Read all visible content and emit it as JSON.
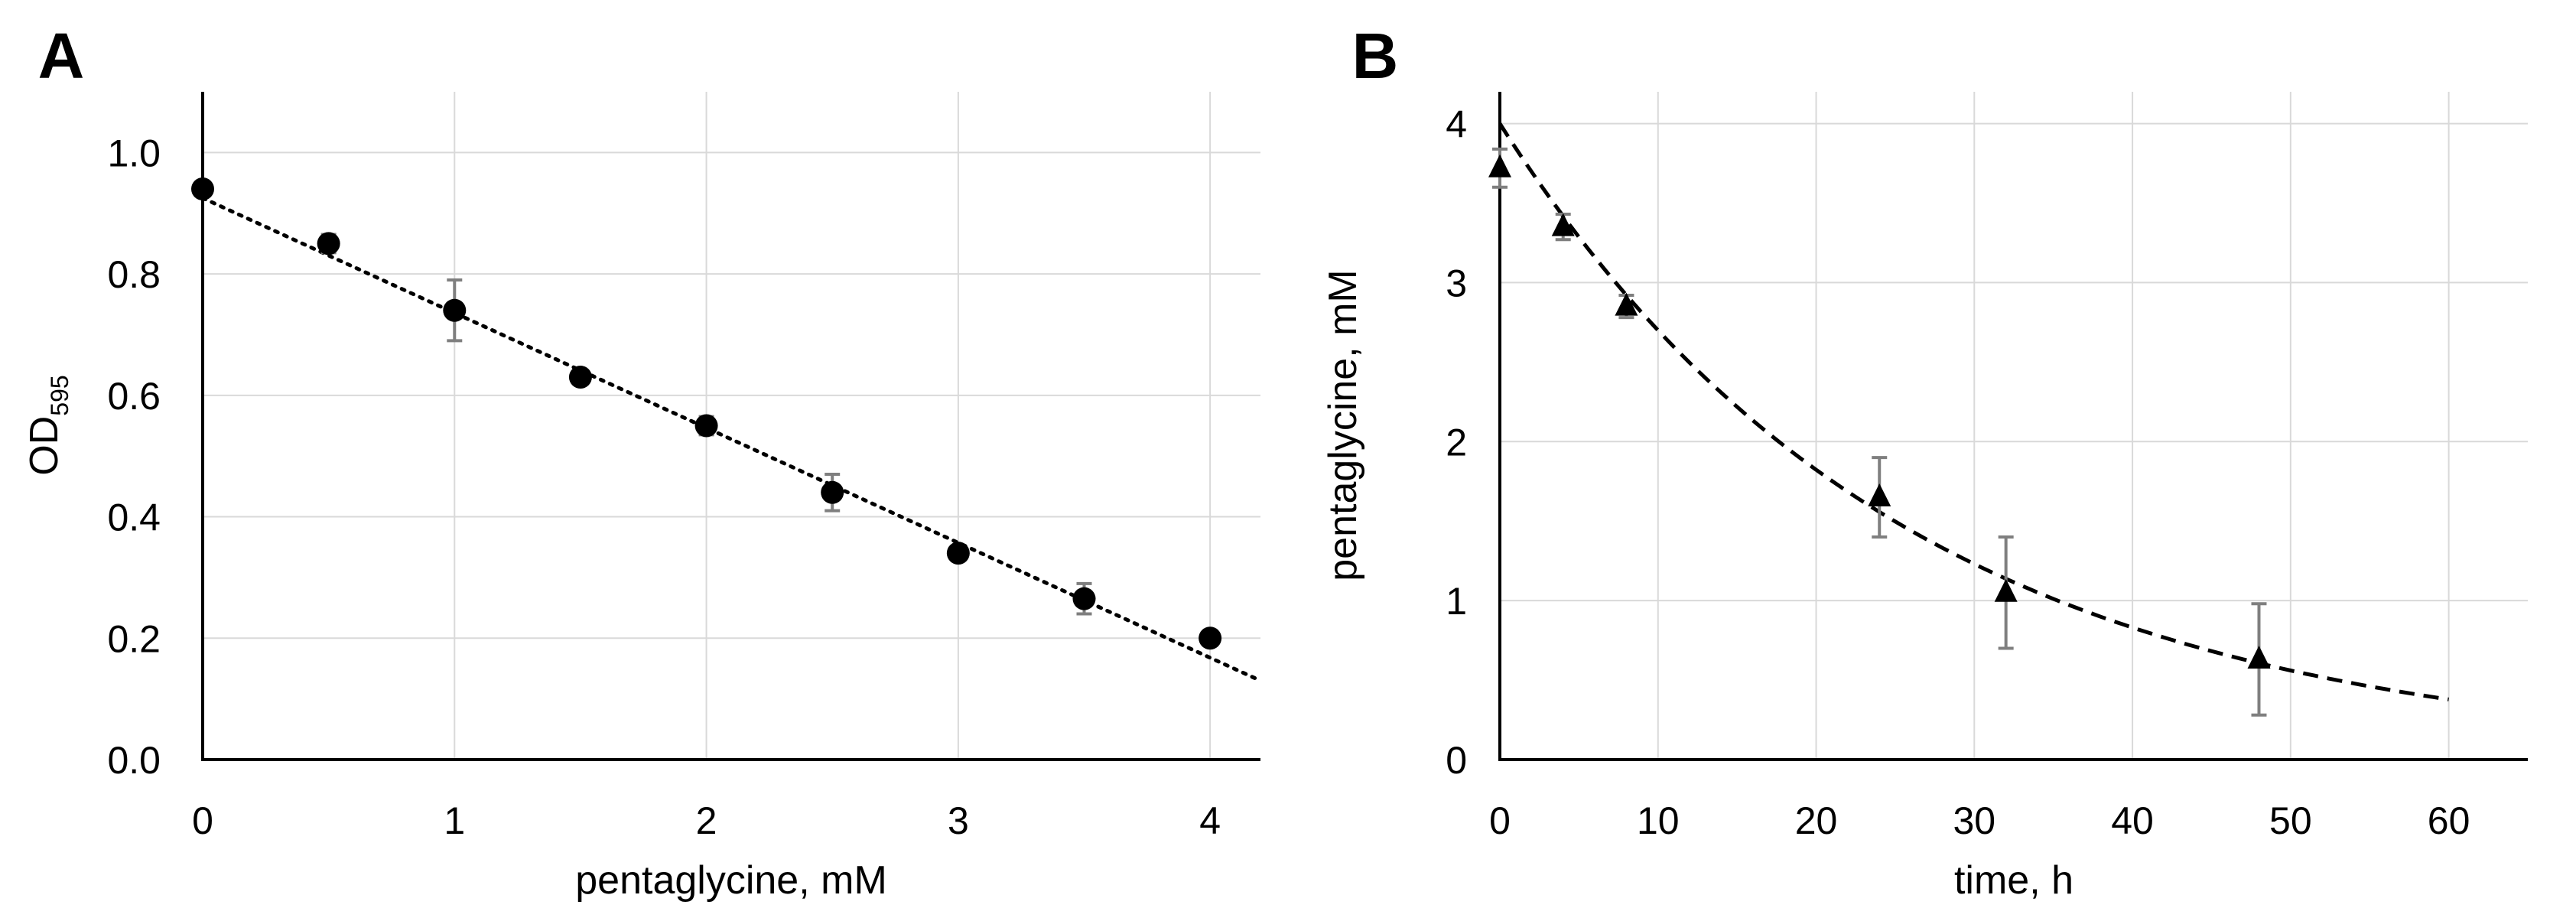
{
  "chart_data": [
    {
      "panel": "A",
      "type": "scatter",
      "xlabel": "pentaglycine, mM",
      "ylabel": "OD",
      "ylabel_sub": "595",
      "xlim": [
        0,
        4.2
      ],
      "ylim": [
        0,
        1.1
      ],
      "xticks": [
        0,
        1,
        2,
        3,
        4
      ],
      "xtick_labels": [
        "0",
        "1",
        "2",
        "3",
        "4"
      ],
      "yticks": [
        0,
        0.2,
        0.4,
        0.6,
        0.8,
        1.0
      ],
      "ytick_labels": [
        "0.0",
        "0.2",
        "0.4",
        "0.6",
        "0.8",
        "1.0"
      ],
      "grid": true,
      "marker": "circle",
      "series": [
        {
          "name": "OD595",
          "x": [
            0,
            0.5,
            1,
            1.5,
            2,
            2.5,
            3,
            3.5,
            4
          ],
          "y": [
            0.94,
            0.85,
            0.74,
            0.63,
            0.55,
            0.44,
            0.34,
            0.265,
            0.2
          ],
          "err": [
            0.01,
            0.015,
            0.05,
            0.008,
            0.015,
            0.03,
            0.008,
            0.025,
            0.008
          ]
        }
      ],
      "trendline": {
        "style": "dotted",
        "kind": "linear",
        "x": [
          0,
          4.2
        ],
        "y": [
          0.925,
          0.13
        ]
      }
    },
    {
      "panel": "B",
      "type": "scatter",
      "xlabel": "time, h",
      "ylabel": "pentaglycine, mM",
      "xlim": [
        0,
        65
      ],
      "ylim": [
        0,
        4.2
      ],
      "xticks": [
        0,
        10,
        20,
        30,
        40,
        50,
        60
      ],
      "xtick_labels": [
        "0",
        "10",
        "20",
        "30",
        "40",
        "50",
        "60"
      ],
      "yticks": [
        0,
        1,
        2,
        3,
        4
      ],
      "ytick_labels": [
        "0",
        "1",
        "2",
        "3",
        "4"
      ],
      "grid": true,
      "marker": "triangle",
      "series": [
        {
          "name": "pentaglycine",
          "x": [
            0,
            4,
            8,
            24,
            32,
            48
          ],
          "y": [
            3.72,
            3.35,
            2.85,
            1.65,
            1.05,
            0.63
          ],
          "err": [
            0.12,
            0.08,
            0.07,
            0.25,
            0.35,
            0.35
          ]
        }
      ],
      "trendline": {
        "style": "dashed",
        "kind": "exponential",
        "a": 4.0,
        "k": 0.0393,
        "x_range": [
          0,
          60
        ]
      }
    }
  ]
}
